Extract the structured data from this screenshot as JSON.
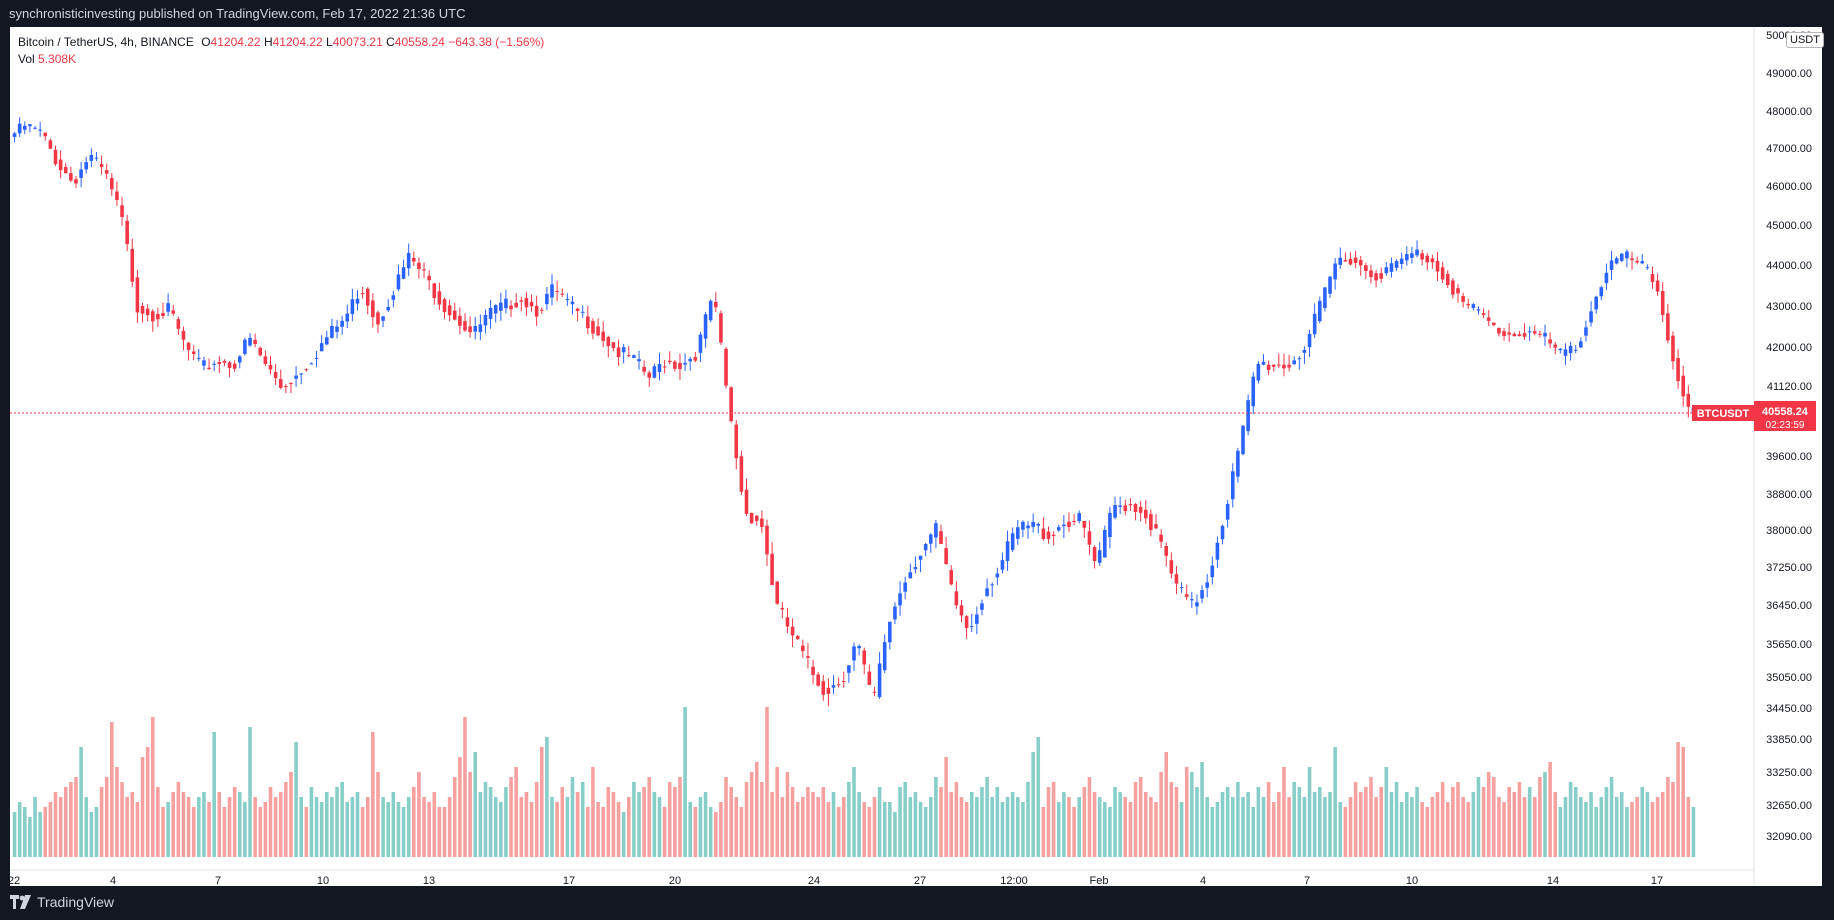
{
  "header": {
    "text": "synchronisticinvesting published on TradingView.com, Feb 17, 2022 21:36 UTC"
  },
  "footer": {
    "brand": "TradingView"
  },
  "legend": {
    "symbol": "Bitcoin / TetherUS, 4h, BINANCE",
    "o_label": "O",
    "o_value": "41204.22",
    "h_label": "H",
    "h_value": "41204.22",
    "l_label": "L",
    "l_value": "40073.21",
    "c_label": "C",
    "c_value": "40558.24",
    "change": "−643.38 (−1.56%)",
    "vol_label": "Vol",
    "vol_value": "5.308K"
  },
  "currency": "USDT",
  "colors": {
    "up": "#2962ff",
    "down": "#f23645",
    "vol_up": "#26a69a",
    "vol_down": "#ef5350"
  },
  "chart_data": {
    "type": "candlestick",
    "symbol": "BTCUSDT",
    "ylim": [
      31700,
      50000
    ],
    "y_ticks": [
      "50000.00",
      "49000.00",
      "48000.00",
      "47000.00",
      "46000.00",
      "45000.00",
      "44000.00",
      "43000.00",
      "42000.00",
      "41120.00",
      "39600.00",
      "38800.00",
      "38000.00",
      "37250.00",
      "36450.00",
      "35650.00",
      "35050.00",
      "34450.00",
      "33850.00",
      "33250.00",
      "32650.00",
      "32090.00"
    ],
    "x_ticks": [
      "22",
      "4",
      "7",
      "10",
      "13",
      "17",
      "20",
      "24",
      "27",
      "12:00",
      "Feb",
      "4",
      "7",
      "10",
      "14",
      "17"
    ],
    "last_price": {
      "symbol": "BTCUSDT",
      "price": "40558.24",
      "countdown": "02:23:59"
    },
    "price_anchors": [
      47300,
      47600,
      47400,
      46600,
      46100,
      46800,
      46300,
      45200,
      43000,
      42800,
      42900,
      42000,
      41500,
      41700,
      41600,
      42200,
      41600,
      41100,
      41400,
      41800,
      42300,
      42700,
      43500,
      42600,
      43400,
      44200,
      43700,
      43100,
      42700,
      42300,
      42800,
      43000,
      43200,
      42900,
      43400,
      43000,
      42700,
      42300,
      41900,
      41700,
      41300,
      41700,
      41600,
      41900,
      43300,
      40600,
      38400,
      38200,
      36400,
      35800,
      35200,
      34800,
      35000,
      35700,
      34500,
      36100,
      37000,
      37600,
      38000,
      36600,
      35900,
      36800,
      37300,
      38000,
      38100,
      37900,
      38200,
      38200,
      37200,
      38500,
      38600,
      38400,
      37700,
      36800,
      36400,
      37100,
      38400,
      39900,
      41600,
      41600,
      41600,
      42000,
      43000,
      44100,
      44200,
      43800,
      43800,
      44100,
      44300,
      44100,
      43600,
      43000,
      42800,
      42400,
      42300,
      42400,
      42200,
      41800,
      42000,
      43000,
      44000,
      44200,
      44000,
      43500,
      41800,
      40558
    ],
    "volume_k": [
      9,
      11,
      10,
      8,
      12,
      9,
      10,
      11,
      13,
      12,
      14,
      15,
      16,
      22,
      12,
      9,
      10,
      14,
      16,
      27,
      18,
      15,
      12,
      13,
      11,
      20,
      22,
      28,
      14,
      10,
      11,
      13,
      15,
      13,
      12,
      10,
      12,
      13,
      11,
      25,
      13,
      10,
      12,
      14,
      13,
      11,
      26,
      12,
      10,
      11,
      14,
      12,
      13,
      15,
      17,
      23,
      12,
      10,
      14,
      12,
      11,
      13,
      12,
      14,
      15,
      11,
      12,
      13,
      10,
      12,
      25,
      17,
      12,
      11,
      13,
      11,
      10,
      12,
      14,
      17,
      12,
      11,
      13,
      10,
      10,
      12,
      16,
      20,
      28,
      17,
      21,
      13,
      15,
      14,
      12,
      11,
      14,
      16,
      18,
      12,
      13,
      11,
      15,
      22,
      24,
      12,
      11,
      14,
      12,
      16,
      13,
      15,
      10,
      18,
      11,
      10,
      14,
      13,
      11,
      9,
      12,
      15,
      13,
      14,
      16,
      13,
      12,
      10,
      15,
      14,
      16,
      30,
      11,
      10,
      12,
      13,
      10,
      9,
      11,
      16,
      14,
      12,
      10,
      15,
      17,
      19,
      15,
      30,
      13,
      18,
      12,
      17,
      14,
      11,
      12,
      14,
      13,
      12,
      14,
      11,
      13,
      10,
      12,
      15,
      18,
      13,
      11,
      10,
      12,
      14,
      11,
      11,
      9,
      14,
      15,
      12,
      13,
      11,
      10,
      12,
      16,
      14,
      20,
      13,
      15,
      12,
      11,
      13,
      12,
      14,
      16,
      12,
      14,
      11,
      12,
      13,
      12,
      11,
      15,
      21,
      24,
      10,
      14,
      15,
      11,
      13,
      12,
      10,
      12,
      14,
      16,
      13,
      12,
      11,
      10,
      14,
      13,
      12,
      11,
      15,
      16,
      13,
      12,
      11,
      17,
      21,
      15,
      14,
      11,
      18,
      17,
      14,
      19,
      12,
      10,
      11,
      13,
      14,
      12,
      15,
      12,
      13,
      10,
      14,
      12,
      15,
      11,
      13,
      18,
      12,
      15,
      14,
      12,
      18,
      13,
      14,
      12,
      13,
      22,
      11,
      10,
      12,
      15,
      13,
      14,
      16,
      12,
      14,
      18,
      13,
      15,
      11,
      13,
      12,
      14,
      11,
      10,
      12,
      13,
      15,
      11,
      14,
      15,
      12,
      11,
      13,
      16,
      14,
      17,
      16,
      12,
      11,
      14,
      13,
      15,
      12,
      14,
      12,
      16,
      17,
      19,
      13,
      10,
      12,
      15,
      14,
      12,
      11,
      13,
      10,
      12,
      14,
      16,
      12,
      13,
      10,
      11,
      12,
      14,
      13,
      11,
      12,
      13,
      16,
      15,
      23,
      22,
      12,
      10
    ]
  }
}
